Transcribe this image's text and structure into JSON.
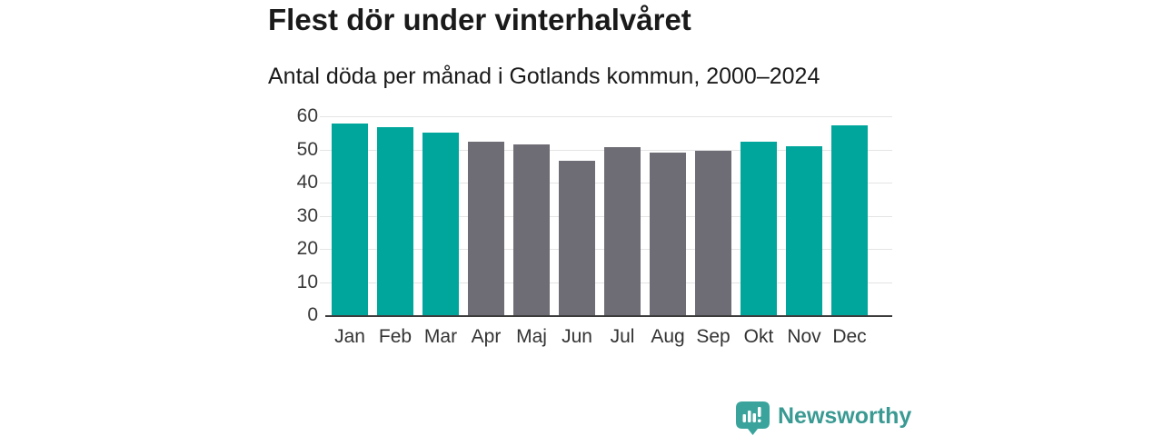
{
  "chart_data": {
    "type": "bar",
    "title": "Flest dör under vinterhalvåret",
    "subtitle": "Antal döda per månad i Gotlands kommun, 2000–2024",
    "categories": [
      "Jan",
      "Feb",
      "Mar",
      "Apr",
      "Maj",
      "Jun",
      "Jul",
      "Aug",
      "Sep",
      "Okt",
      "Nov",
      "Dec"
    ],
    "values": [
      57.7,
      56.6,
      55.0,
      52.2,
      51.6,
      46.6,
      50.6,
      49.0,
      49.7,
      52.4,
      51.0,
      57.2
    ],
    "seasons": [
      "winter",
      "winter",
      "winter",
      "summer",
      "summer",
      "summer",
      "summer",
      "summer",
      "summer",
      "winter",
      "winter",
      "winter"
    ],
    "xlabel": "",
    "ylabel": "",
    "ylim": [
      0,
      60
    ],
    "yticks": [
      0,
      10,
      20,
      30,
      40,
      50,
      60
    ],
    "grid": true,
    "legend": false
  },
  "colors": {
    "winter": "#00a69c",
    "summer": "#6e6c74",
    "grid": "#e4e4e4",
    "axis_line": "#3c3c3c",
    "title_text": "#1a1a1a",
    "tick_text": "#383838",
    "brand_text": "#3a9a93",
    "brand_icon": "#3aa49c"
  },
  "footer": {
    "brand": "Newsworthy",
    "logo_icon": "bar-chart-speech-bubble-icon"
  }
}
